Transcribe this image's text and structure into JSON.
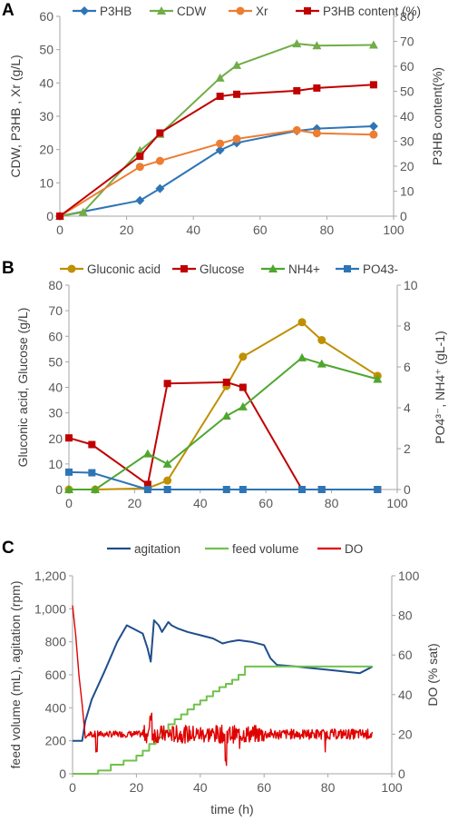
{
  "chart_data": [
    {
      "panel": "A",
      "type": "line",
      "ylabel": "CDW, P3HB , Xr (g/L)",
      "y2label": "P3HB content(%)",
      "xlim": [
        0,
        100
      ],
      "xticks": [
        0,
        20,
        40,
        60,
        80,
        100
      ],
      "ylim": [
        0,
        60
      ],
      "yticks": [
        0,
        10,
        20,
        30,
        40,
        50,
        60
      ],
      "y2lim": [
        0,
        80
      ],
      "y2ticks": [
        0,
        10,
        20,
        30,
        40,
        50,
        60,
        70,
        80
      ],
      "legend_position": "top",
      "series": [
        {
          "name": "P3HB",
          "color": "#2E75B6",
          "marker": "diamond",
          "axis": "left",
          "x": [
            0,
            24,
            30,
            48,
            53,
            71,
            77,
            94
          ],
          "y": [
            0,
            4.7,
            8.3,
            19.8,
            22.0,
            25.6,
            26.3,
            27.0
          ]
        },
        {
          "name": "CDW",
          "color": "#70AD47",
          "marker": "triangle",
          "axis": "left",
          "x": [
            0,
            7,
            24,
            30,
            48,
            53,
            71,
            77,
            94
          ],
          "y": [
            0,
            1.2,
            19.7,
            24.6,
            41.5,
            45.3,
            51.8,
            51.2,
            51.4
          ]
        },
        {
          "name": "Xr",
          "color": "#ED7D31",
          "marker": "circle",
          "axis": "left",
          "x": [
            0,
            24,
            30,
            48,
            53,
            71,
            77,
            94
          ],
          "y": [
            0,
            14.8,
            16.6,
            21.8,
            23.2,
            25.8,
            24.9,
            24.5
          ]
        },
        {
          "name": "P3HB content (%)",
          "color": "#C00000",
          "marker": "square",
          "axis": "right",
          "x": [
            0,
            24,
            30,
            48,
            53,
            71,
            77,
            94
          ],
          "y": [
            0,
            24,
            33.3,
            48,
            48.8,
            50.2,
            51.3,
            52.6
          ]
        }
      ]
    },
    {
      "panel": "B",
      "type": "line",
      "ylabel": "Gluconic acid,  Glucose (g/L)",
      "y2label": "PO4³⁻, NH4⁺ (gL-1)",
      "xlim": [
        0,
        100
      ],
      "xticks": [
        0,
        20,
        40,
        60,
        80,
        100
      ],
      "ylim": [
        0,
        80
      ],
      "yticks": [
        0,
        10,
        20,
        30,
        40,
        50,
        60,
        70,
        80
      ],
      "y2lim": [
        0,
        10
      ],
      "y2ticks": [
        0,
        2,
        4,
        6,
        8,
        10
      ],
      "legend_position": "top",
      "series": [
        {
          "name": "Gluconic acid",
          "color": "#BF9000",
          "marker": "circle",
          "axis": "left",
          "x": [
            0,
            8,
            24,
            30,
            48,
            53,
            71,
            77,
            94
          ],
          "y": [
            0,
            0,
            0.5,
            3.5,
            40.5,
            52,
            65.5,
            58.5,
            44.5
          ]
        },
        {
          "name": "Glucose",
          "color": "#C00000",
          "marker": "square",
          "axis": "left",
          "x": [
            0,
            7,
            24,
            30,
            48,
            53,
            71,
            77,
            94
          ],
          "y": [
            20.2,
            17.6,
            2.0,
            41.5,
            42,
            40,
            0,
            0,
            0
          ]
        },
        {
          "name": "NH4+",
          "color": "#4EA72E",
          "marker": "triangle",
          "axis": "right",
          "x": [
            0,
            8,
            24,
            30,
            48,
            53,
            71,
            77,
            94
          ],
          "y": [
            0,
            0,
            1.75,
            1.25,
            3.6,
            4.05,
            6.45,
            6.15,
            5.4
          ]
        },
        {
          "name": "PO43-",
          "color": "#2E75B6",
          "marker": "square",
          "axis": "right",
          "x": [
            0,
            7,
            24,
            30,
            48,
            53,
            71,
            77,
            94
          ],
          "y": [
            0.85,
            0.82,
            0,
            0,
            0,
            0,
            0,
            0,
            0
          ]
        }
      ]
    },
    {
      "panel": "C",
      "type": "line",
      "xlabel": "time (h)",
      "ylabel": "feed volume (mL), agitation (rpm)",
      "y2label": "DO (% sat)",
      "xlim": [
        0,
        100
      ],
      "xticks": [
        0,
        20,
        40,
        60,
        80,
        100
      ],
      "ylim": [
        0,
        1200
      ],
      "yticks": [
        "0",
        "200",
        "400",
        "600",
        "800",
        "1,000",
        "1,200"
      ],
      "y2lim": [
        0,
        100
      ],
      "y2ticks": [
        0,
        20,
        40,
        60,
        80,
        100
      ],
      "legend_position": "top",
      "series": [
        {
          "name": "agitation",
          "color": "#1F4E8C",
          "axis": "left",
          "x": [
            0,
            3,
            4,
            6,
            10,
            14,
            17,
            20,
            22,
            23.5,
            24.5,
            25.5,
            27,
            28,
            30,
            31,
            33,
            36,
            40,
            44,
            47,
            49,
            52,
            56,
            60,
            62,
            64,
            70,
            75,
            80,
            85,
            90,
            93,
            94
          ],
          "y": [
            200,
            200,
            320,
            450,
            620,
            800,
            900,
            870,
            850,
            760,
            680,
            930,
            900,
            860,
            920,
            900,
            880,
            860,
            840,
            820,
            790,
            800,
            810,
            800,
            780,
            700,
            660,
            650,
            640,
            630,
            620,
            610,
            640,
            650
          ]
        },
        {
          "name": "feed volume",
          "color": "#70C24A",
          "axis": "left",
          "step": true,
          "x": [
            0,
            4,
            8,
            12,
            16,
            20,
            22,
            24,
            26,
            28,
            30,
            32,
            34,
            36,
            38,
            40,
            42,
            44,
            46,
            48,
            50,
            52,
            54,
            58,
            62,
            66,
            70,
            80,
            90,
            94
          ],
          "y": [
            0,
            0,
            20,
            55,
            80,
            110,
            140,
            180,
            220,
            260,
            300,
            330,
            360,
            390,
            420,
            445,
            470,
            500,
            525,
            545,
            570,
            600,
            650,
            650,
            650,
            650,
            650,
            650,
            650,
            650
          ]
        },
        {
          "name": "DO",
          "color": "#E00000",
          "axis": "right",
          "x": [
            0,
            1,
            2,
            3,
            4,
            5,
            94
          ],
          "y": [
            85,
            70,
            50,
            35,
            18,
            20,
            20
          ],
          "noise_band": [
            2,
            94
          ]
        }
      ]
    }
  ]
}
